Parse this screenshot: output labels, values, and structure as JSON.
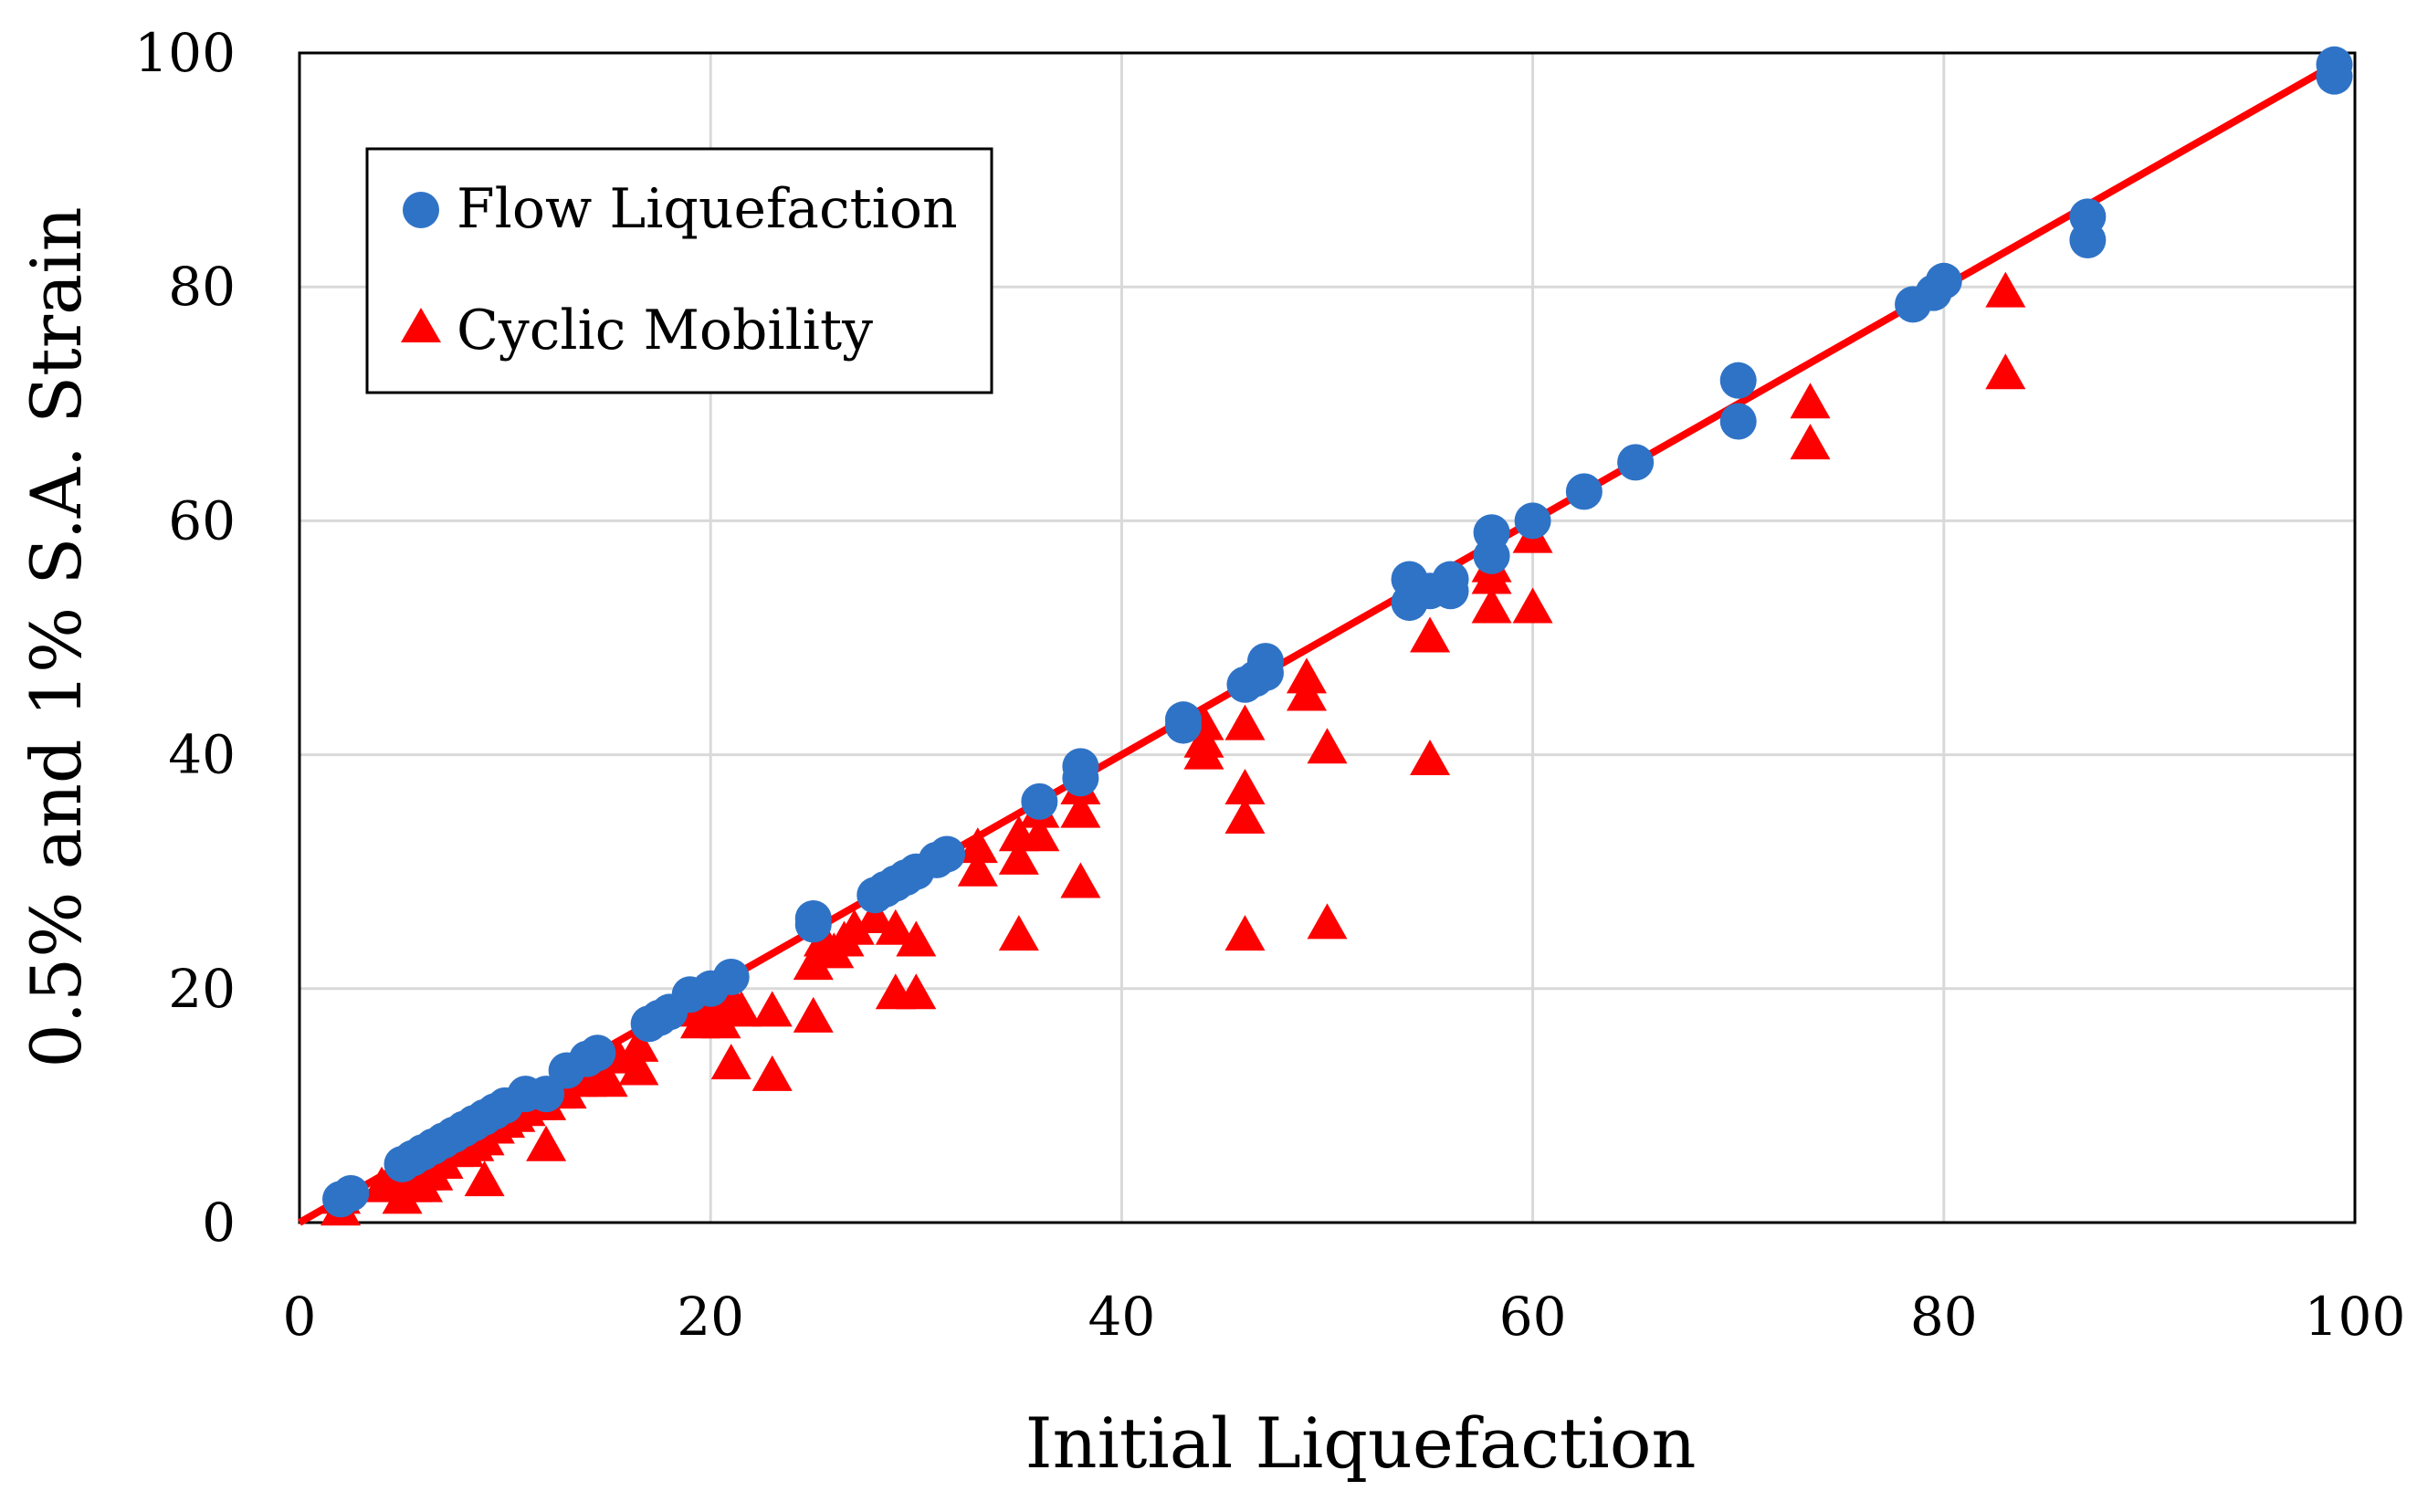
{
  "chart_data": {
    "type": "scatter",
    "title": "",
    "xlabel": "Initial Liquefaction",
    "ylabel": "0.5% and 1%  S.A. Strain",
    "xlim": [
      0,
      100
    ],
    "ylim": [
      0,
      100
    ],
    "xticks": [
      0,
      20,
      40,
      60,
      80,
      100
    ],
    "yticks": [
      0,
      20,
      40,
      60,
      80,
      100
    ],
    "xtick_labels": [
      "0",
      "20",
      "40",
      "60",
      "80",
      "100"
    ],
    "ytick_labels": [
      "0",
      "20",
      "40",
      "60",
      "80",
      "100"
    ],
    "grid": true,
    "legend_position": "top-left",
    "colors": {
      "flow": "#2F73C6",
      "cyclic": "#FF0000",
      "line": "#FF0000",
      "grid": "#D9D9D9",
      "frame": "#000000"
    },
    "reference_line": {
      "name": "1:1 line",
      "x": [
        0,
        99
      ],
      "y": [
        0,
        99
      ]
    },
    "series": [
      {
        "name": "Flow Liquefaction",
        "marker": "circle",
        "points": [
          [
            2,
            2
          ],
          [
            2.5,
            2.5
          ],
          [
            5,
            5
          ],
          [
            5.5,
            5.5
          ],
          [
            6,
            6
          ],
          [
            6.5,
            6.5
          ],
          [
            7,
            7
          ],
          [
            7.5,
            7.5
          ],
          [
            8,
            8
          ],
          [
            8.5,
            8.5
          ],
          [
            9,
            9
          ],
          [
            9.5,
            9.5
          ],
          [
            10,
            10
          ],
          [
            11,
            11
          ],
          [
            12,
            11
          ],
          [
            13,
            13
          ],
          [
            14,
            14
          ],
          [
            14.5,
            14.5
          ],
          [
            17,
            17
          ],
          [
            17.5,
            17.5
          ],
          [
            18,
            18
          ],
          [
            19,
            19.5
          ],
          [
            20,
            20
          ],
          [
            21,
            21
          ],
          [
            25,
            25.5
          ],
          [
            25,
            26
          ],
          [
            28,
            28
          ],
          [
            28.5,
            28.5
          ],
          [
            29,
            29
          ],
          [
            29.5,
            29.5
          ],
          [
            30,
            30
          ],
          [
            31,
            31
          ],
          [
            31.5,
            31.5
          ],
          [
            36,
            36
          ],
          [
            38,
            38
          ],
          [
            38,
            39
          ],
          [
            43,
            43
          ],
          [
            43,
            42.5
          ],
          [
            46,
            46
          ],
          [
            46.5,
            46.5
          ],
          [
            47,
            47
          ],
          [
            47,
            48
          ],
          [
            54,
            53
          ],
          [
            54,
            55
          ],
          [
            55,
            54
          ],
          [
            56,
            55
          ],
          [
            56,
            54
          ],
          [
            58,
            57
          ],
          [
            58,
            59
          ],
          [
            60,
            60
          ],
          [
            62.5,
            62.5
          ],
          [
            65,
            65
          ],
          [
            70,
            68.5
          ],
          [
            70,
            72
          ],
          [
            78.5,
            78.5
          ],
          [
            79.5,
            79.5
          ],
          [
            80,
            80.5
          ],
          [
            87,
            84
          ],
          [
            87,
            86
          ],
          [
            99,
            98
          ],
          [
            99,
            99
          ]
        ]
      },
      {
        "name": "Cyclic Mobility",
        "marker": "triangle",
        "points": [
          [
            2,
            1
          ],
          [
            2,
            2
          ],
          [
            4,
            3
          ],
          [
            4.5,
            3.5
          ],
          [
            5,
            2
          ],
          [
            5.5,
            3
          ],
          [
            6,
            3
          ],
          [
            6,
            4
          ],
          [
            6.5,
            4
          ],
          [
            7,
            5
          ],
          [
            7.5,
            6
          ],
          [
            8,
            6
          ],
          [
            8.5,
            6.5
          ],
          [
            9,
            3.5
          ],
          [
            9,
            7
          ],
          [
            9.5,
            8
          ],
          [
            10,
            8.5
          ],
          [
            10.5,
            9
          ],
          [
            11,
            9.5
          ],
          [
            11.5,
            10
          ],
          [
            12,
            6.5
          ],
          [
            12,
            10
          ],
          [
            12.5,
            11
          ],
          [
            13,
            11
          ],
          [
            13.5,
            12
          ],
          [
            14,
            12
          ],
          [
            14.5,
            13
          ],
          [
            15,
            12
          ],
          [
            15.5,
            14
          ],
          [
            16.5,
            13
          ],
          [
            16.5,
            15
          ],
          [
            19,
            18
          ],
          [
            19.5,
            17
          ],
          [
            20,
            18
          ],
          [
            20.5,
            17
          ],
          [
            21,
            13.5
          ],
          [
            21,
            19
          ],
          [
            21.5,
            18
          ],
          [
            23,
            12.5
          ],
          [
            23,
            18
          ],
          [
            25,
            17.5
          ],
          [
            25,
            22
          ],
          [
            25.5,
            24
          ],
          [
            26,
            23
          ],
          [
            26.5,
            24
          ],
          [
            27,
            25
          ],
          [
            28,
            26
          ],
          [
            29,
            19.5
          ],
          [
            29,
            25
          ],
          [
            30,
            19.5
          ],
          [
            30,
            24
          ],
          [
            33,
            30
          ],
          [
            33,
            32
          ],
          [
            35,
            24.5
          ],
          [
            35,
            31
          ],
          [
            35,
            33
          ],
          [
            36,
            33
          ],
          [
            36,
            35
          ],
          [
            38,
            29
          ],
          [
            38,
            35
          ],
          [
            38,
            37
          ],
          [
            44,
            40
          ],
          [
            44,
            41
          ],
          [
            44,
            42.5
          ],
          [
            46,
            24.5
          ],
          [
            46,
            34.5
          ],
          [
            46,
            37
          ],
          [
            46,
            42.5
          ],
          [
            49,
            45
          ],
          [
            49,
            46.5
          ],
          [
            50,
            25.5
          ],
          [
            50,
            40.5
          ],
          [
            55,
            39.5
          ],
          [
            55,
            50
          ],
          [
            58,
            52.5
          ],
          [
            58,
            55
          ],
          [
            58,
            56
          ],
          [
            60,
            52.5
          ],
          [
            60,
            58.5
          ],
          [
            73.5,
            66.5
          ],
          [
            73.5,
            70
          ],
          [
            83,
            72.5
          ],
          [
            83,
            79.5
          ]
        ]
      }
    ]
  }
}
